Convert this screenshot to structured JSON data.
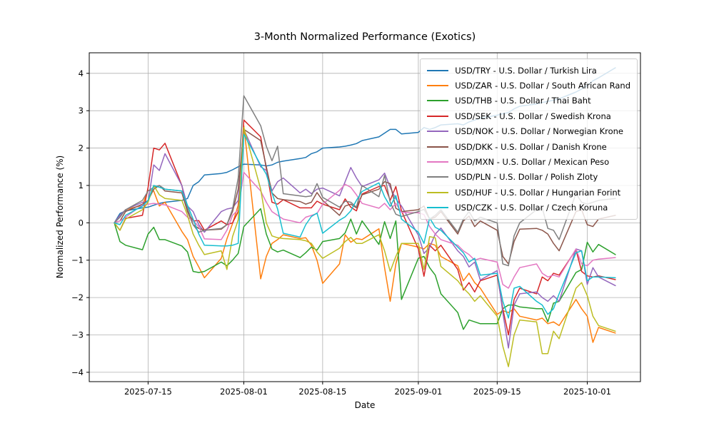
{
  "chart_data": {
    "type": "line",
    "title": "3-Month Normalized Performance (Exotics)",
    "xlabel": "Date",
    "ylabel": "Normalized Performance (%)",
    "grid": true,
    "legend_position": "upper right",
    "line_width": 1.5,
    "y_ticks": [
      -4,
      -3,
      -2,
      -1,
      0,
      1,
      2,
      3,
      4
    ],
    "x_tick_labels": [
      "2025-07-15",
      "2025-08-01",
      "2025-08-15",
      "2025-09-01",
      "2025-09-15",
      "2025-10-01"
    ],
    "x": [
      "2025-07-09",
      "2025-07-10",
      "2025-07-11",
      "2025-07-14",
      "2025-07-15",
      "2025-07-16",
      "2025-07-17",
      "2025-07-18",
      "2025-07-21",
      "2025-07-22",
      "2025-07-23",
      "2025-07-24",
      "2025-07-25",
      "2025-07-28",
      "2025-07-29",
      "2025-07-30",
      "2025-07-31",
      "2025-08-01",
      "2025-08-04",
      "2025-08-05",
      "2025-08-06",
      "2025-08-07",
      "2025-08-08",
      "2025-08-11",
      "2025-08-12",
      "2025-08-13",
      "2025-08-14",
      "2025-08-15",
      "2025-08-18",
      "2025-08-19",
      "2025-08-20",
      "2025-08-21",
      "2025-08-22",
      "2025-08-25",
      "2025-08-26",
      "2025-08-27",
      "2025-08-28",
      "2025-08-29",
      "2025-09-01",
      "2025-09-02",
      "2025-09-03",
      "2025-09-04",
      "2025-09-05",
      "2025-09-08",
      "2025-09-09",
      "2025-09-10",
      "2025-09-11",
      "2025-09-12",
      "2025-09-15",
      "2025-09-16",
      "2025-09-17",
      "2025-09-18",
      "2025-09-19",
      "2025-09-22",
      "2025-09-23",
      "2025-09-24",
      "2025-09-25",
      "2025-09-26",
      "2025-09-29",
      "2025-09-30",
      "2025-10-01",
      "2025-10-02",
      "2025-10-03",
      "2025-10-06"
    ],
    "series": [
      {
        "name": "USD/TRY - U.S. Dollar / Turkish Lira",
        "code": "usd-try",
        "color": "#1f77b4",
        "values": [
          0,
          0.25,
          0.32,
          0.4,
          0.42,
          0.47,
          0.52,
          0.55,
          0.6,
          0.65,
          1.0,
          1.1,
          1.28,
          1.32,
          1.35,
          1.42,
          1.5,
          1.57,
          1.55,
          1.52,
          1.55,
          1.62,
          1.65,
          1.72,
          1.75,
          1.85,
          1.9,
          2.0,
          2.03,
          2.05,
          2.08,
          2.12,
          2.2,
          2.3,
          2.4,
          2.5,
          2.5,
          2.38,
          2.42,
          2.55,
          2.5,
          2.55,
          2.62,
          2.65,
          2.62,
          2.7,
          2.75,
          2.8,
          2.88,
          2.92,
          2.95,
          3.05,
          3.12,
          3.18,
          3.22,
          3.25,
          3.28,
          3.32,
          3.5,
          3.58,
          3.68,
          3.8,
          3.88,
          4.15
        ]
      },
      {
        "name": "USD/ZAR - U.S. Dollar / South African Rand",
        "code": "usd-zar",
        "color": "#ff7f0e",
        "values": [
          0,
          0.2,
          0.35,
          0.47,
          0.87,
          0.85,
          0.45,
          0.55,
          -0.23,
          -0.45,
          -0.9,
          -1.18,
          -1.47,
          -0.95,
          -0.43,
          -0.02,
          0.47,
          2.6,
          -1.5,
          -0.9,
          -0.55,
          -0.45,
          -0.32,
          -0.42,
          -0.4,
          -0.6,
          -1.0,
          -1.62,
          -1.1,
          -0.32,
          -0.52,
          -0.42,
          -0.45,
          -0.16,
          -1.2,
          -2.1,
          -1.1,
          -0.55,
          -0.65,
          -0.7,
          -0.55,
          -0.6,
          -0.9,
          -1.15,
          -1.55,
          -1.35,
          -1.6,
          -1.75,
          -2.45,
          -2.35,
          -2.4,
          -2.3,
          -2.5,
          -2.6,
          -2.55,
          -2.7,
          -2.65,
          -2.75,
          -2.05,
          -2.3,
          -2.5,
          -3.2,
          -2.8,
          -2.95
        ]
      },
      {
        "name": "USD/THB - U.S. Dollar / Thai Baht",
        "code": "usd-thb",
        "color": "#2ca02c",
        "values": [
          0,
          -0.5,
          -0.6,
          -0.72,
          -0.3,
          -0.12,
          -0.45,
          -0.45,
          -0.62,
          -0.78,
          -1.3,
          -1.33,
          -1.3,
          -1.05,
          -1.15,
          -1.0,
          -0.82,
          -0.1,
          0.38,
          -0.3,
          -0.7,
          -0.78,
          -0.73,
          -0.93,
          -0.8,
          -0.65,
          -0.73,
          -0.5,
          -0.42,
          -0.27,
          0.1,
          -0.3,
          0.05,
          -0.58,
          0.03,
          -0.42,
          0.05,
          -2.05,
          -0.95,
          -0.9,
          -1.2,
          -1.4,
          -1.9,
          -2.4,
          -2.85,
          -2.6,
          -2.65,
          -2.7,
          -2.7,
          -2.3,
          -2.2,
          -2.2,
          -2.25,
          -2.3,
          -2.3,
          -2.65,
          -2.15,
          -2.1,
          -1.33,
          -1.25,
          -0.52,
          -0.78,
          -0.58,
          -0.85
        ]
      },
      {
        "name": "USD/SEK - U.S. Dollar / Swedish Krona",
        "code": "usd-sek",
        "color": "#d62728",
        "values": [
          0,
          -0.2,
          0.12,
          0.2,
          0.95,
          2.0,
          1.95,
          2.13,
          1.0,
          0.3,
          0.05,
          0.06,
          -0.2,
          0.05,
          -0.05,
          0.0,
          0.3,
          2.75,
          2.3,
          1.45,
          0.55,
          0.5,
          0.62,
          0.4,
          0.4,
          0.4,
          0.58,
          0.5,
          0.35,
          0.64,
          0.42,
          0.32,
          0.77,
          0.97,
          1.0,
          0.6,
          0.97,
          0.32,
          -0.7,
          -1.43,
          -0.6,
          -0.75,
          -0.6,
          -1.25,
          -1.8,
          -1.6,
          -1.85,
          -1.55,
          -1.4,
          -2.3,
          -3.0,
          -2.05,
          -1.75,
          -1.9,
          -1.45,
          -1.55,
          -1.35,
          -1.4,
          -0.72,
          -1.3,
          -1.42,
          -1.45,
          -1.42,
          -1.52
        ]
      },
      {
        "name": "USD/NOK - U.S. Dollar / Norwegian Krone",
        "code": "usd-nok",
        "color": "#9467bd",
        "values": [
          0,
          0.2,
          0.35,
          0.55,
          0.55,
          1.55,
          1.4,
          1.85,
          1.0,
          0.45,
          0.3,
          -0.05,
          -0.25,
          0.3,
          0.37,
          0.4,
          0.6,
          2.5,
          1.5,
          1.4,
          0.85,
          1.1,
          1.2,
          0.8,
          0.9,
          0.78,
          0.9,
          0.93,
          0.72,
          1.1,
          1.48,
          1.2,
          0.97,
          1.15,
          1.33,
          0.95,
          0.64,
          0.45,
          -0.33,
          -0.82,
          -0.66,
          -0.3,
          -0.14,
          -0.75,
          -0.9,
          -1.18,
          -1.05,
          -1.53,
          -1.28,
          -2.4,
          -3.35,
          -2.2,
          -1.9,
          -1.85,
          -2.0,
          -2.1,
          -1.95,
          -2.1,
          -0.7,
          -0.75,
          -1.65,
          -1.2,
          -1.45,
          -1.68
        ]
      },
      {
        "name": "USD/DKK - U.S. Dollar / Danish Krone",
        "code": "usd-dkk",
        "color": "#8c564b",
        "values": [
          0,
          0.05,
          0.3,
          0.5,
          0.6,
          0.9,
          1.0,
          0.85,
          0.8,
          0.3,
          -0.05,
          -0.15,
          -0.2,
          -0.17,
          -0.05,
          0.3,
          0.9,
          2.5,
          2.2,
          1.5,
          0.8,
          0.65,
          0.62,
          0.57,
          0.5,
          0.55,
          0.81,
          0.6,
          0.2,
          0.45,
          0.5,
          0.4,
          0.75,
          0.9,
          1.1,
          1.05,
          0.39,
          0.3,
          0.35,
          0.45,
          0.1,
          0.15,
          0.3,
          -0.3,
          0.05,
          0.18,
          -0.1,
          0.05,
          -0.2,
          -0.9,
          -1.1,
          -0.5,
          -0.17,
          -0.15,
          -0.2,
          -0.3,
          -0.55,
          -0.75,
          0.3,
          0.35,
          -0.05,
          -0.1,
          0.1,
          0.2
        ]
      },
      {
        "name": "USD/MXN - U.S. Dollar / Mexican Peso",
        "code": "usd-mxn",
        "color": "#e377c2",
        "values": [
          0,
          0.05,
          0.15,
          0.48,
          0.5,
          0.52,
          0.5,
          0.48,
          0.3,
          0.15,
          0.05,
          -0.1,
          -0.43,
          -0.45,
          -0.2,
          0.2,
          0.35,
          1.35,
          0.85,
          0.55,
          0.3,
          0.2,
          0.1,
          0.0,
          0.15,
          0.2,
          0.25,
          0.5,
          0.87,
          1.03,
          0.95,
          0.75,
          0.52,
          0.39,
          0.52,
          0.35,
          0.52,
          0.28,
          0.27,
          0.22,
          -0.1,
          -0.3,
          -0.45,
          -0.6,
          -0.75,
          -0.85,
          -1.0,
          -0.95,
          -1.05,
          -1.65,
          -1.75,
          -1.45,
          -1.2,
          -1.1,
          -1.35,
          -1.45,
          -1.4,
          -1.45,
          -0.7,
          -1.1,
          -1.15,
          -1.0,
          -0.97,
          -0.93
        ]
      },
      {
        "name": "USD/PLN - U.S. Dollar / Polish Zloty",
        "code": "usd-pln",
        "color": "#7f7f7f",
        "values": [
          0,
          0.15,
          0.35,
          0.6,
          0.85,
          0.95,
          1.0,
          0.9,
          0.85,
          0.4,
          -0.05,
          -0.25,
          -0.2,
          -0.15,
          -0.05,
          0.37,
          1.2,
          3.4,
          2.6,
          2.05,
          1.66,
          2.05,
          0.78,
          0.72,
          0.7,
          0.72,
          1.05,
          0.68,
          0.42,
          0.58,
          0.55,
          0.42,
          1.0,
          0.7,
          1.27,
          0.55,
          0.23,
          0.17,
          0.3,
          0.36,
          0.1,
          0.2,
          0.35,
          -0.25,
          0.1,
          0.3,
          0.05,
          0.15,
          0.0,
          -1.1,
          -1.15,
          -0.35,
          0.0,
          0.35,
          0.4,
          -0.15,
          -0.2,
          -0.45,
          0.78,
          0.55,
          0.5,
          0.55,
          0.6,
          0.65
        ]
      },
      {
        "name": "USD/HUF - U.S. Dollar / Hungarian Forint",
        "code": "usd-huf",
        "color": "#bcbd22",
        "values": [
          0,
          -0.2,
          0.1,
          0.35,
          0.55,
          1.0,
          0.75,
          0.65,
          0.6,
          0.2,
          -0.3,
          -0.6,
          -0.85,
          -0.75,
          -1.25,
          -0.37,
          0.08,
          2.55,
          0.9,
          0.0,
          -0.35,
          -0.4,
          -0.42,
          -0.45,
          -0.48,
          -0.55,
          -0.78,
          -0.95,
          -0.68,
          -0.5,
          -0.39,
          -0.55,
          -0.55,
          -0.32,
          -0.75,
          -1.3,
          -0.9,
          -0.55,
          -0.55,
          -1.25,
          -0.37,
          -0.4,
          -1.17,
          -1.55,
          -1.75,
          -1.9,
          -2.1,
          -1.95,
          -2.5,
          -3.3,
          -3.85,
          -3.0,
          -2.6,
          -2.65,
          -3.5,
          -3.5,
          -2.9,
          -3.1,
          -1.75,
          -1.6,
          -1.95,
          -2.5,
          -2.75,
          -2.9
        ]
      },
      {
        "name": "USD/CZK - U.S. Dollar / Czech Koruna",
        "code": "usd-czk",
        "color": "#17becf",
        "values": [
          0,
          -0.05,
          0.2,
          0.45,
          0.6,
          1.0,
          0.95,
          0.9,
          0.85,
          0.47,
          0.1,
          -0.3,
          -0.6,
          -0.62,
          -0.62,
          -0.6,
          -0.55,
          2.37,
          1.55,
          1.3,
          0.8,
          0.37,
          -0.28,
          -0.38,
          -0.05,
          0.17,
          0.26,
          -0.28,
          0.07,
          0.16,
          0.32,
          0.6,
          0.84,
          1.07,
          0.7,
          0.44,
          0.73,
          0.1,
          -0.25,
          -0.55,
          0.13,
          -0.12,
          -0.2,
          -0.65,
          -0.8,
          -1.05,
          -0.95,
          -1.4,
          -1.35,
          -2.1,
          -2.55,
          -1.75,
          -1.7,
          -2.1,
          -2.2,
          -2.45,
          -2.3,
          -1.9,
          -0.8,
          -0.75,
          -1.55,
          -1.45,
          -1.45,
          -1.47
        ]
      }
    ]
  },
  "colors": {
    "background": "#ffffff",
    "grid": "#b0b0b0",
    "spine": "#000000",
    "tick_label": "#000000",
    "legend_border": "#cccccc"
  }
}
